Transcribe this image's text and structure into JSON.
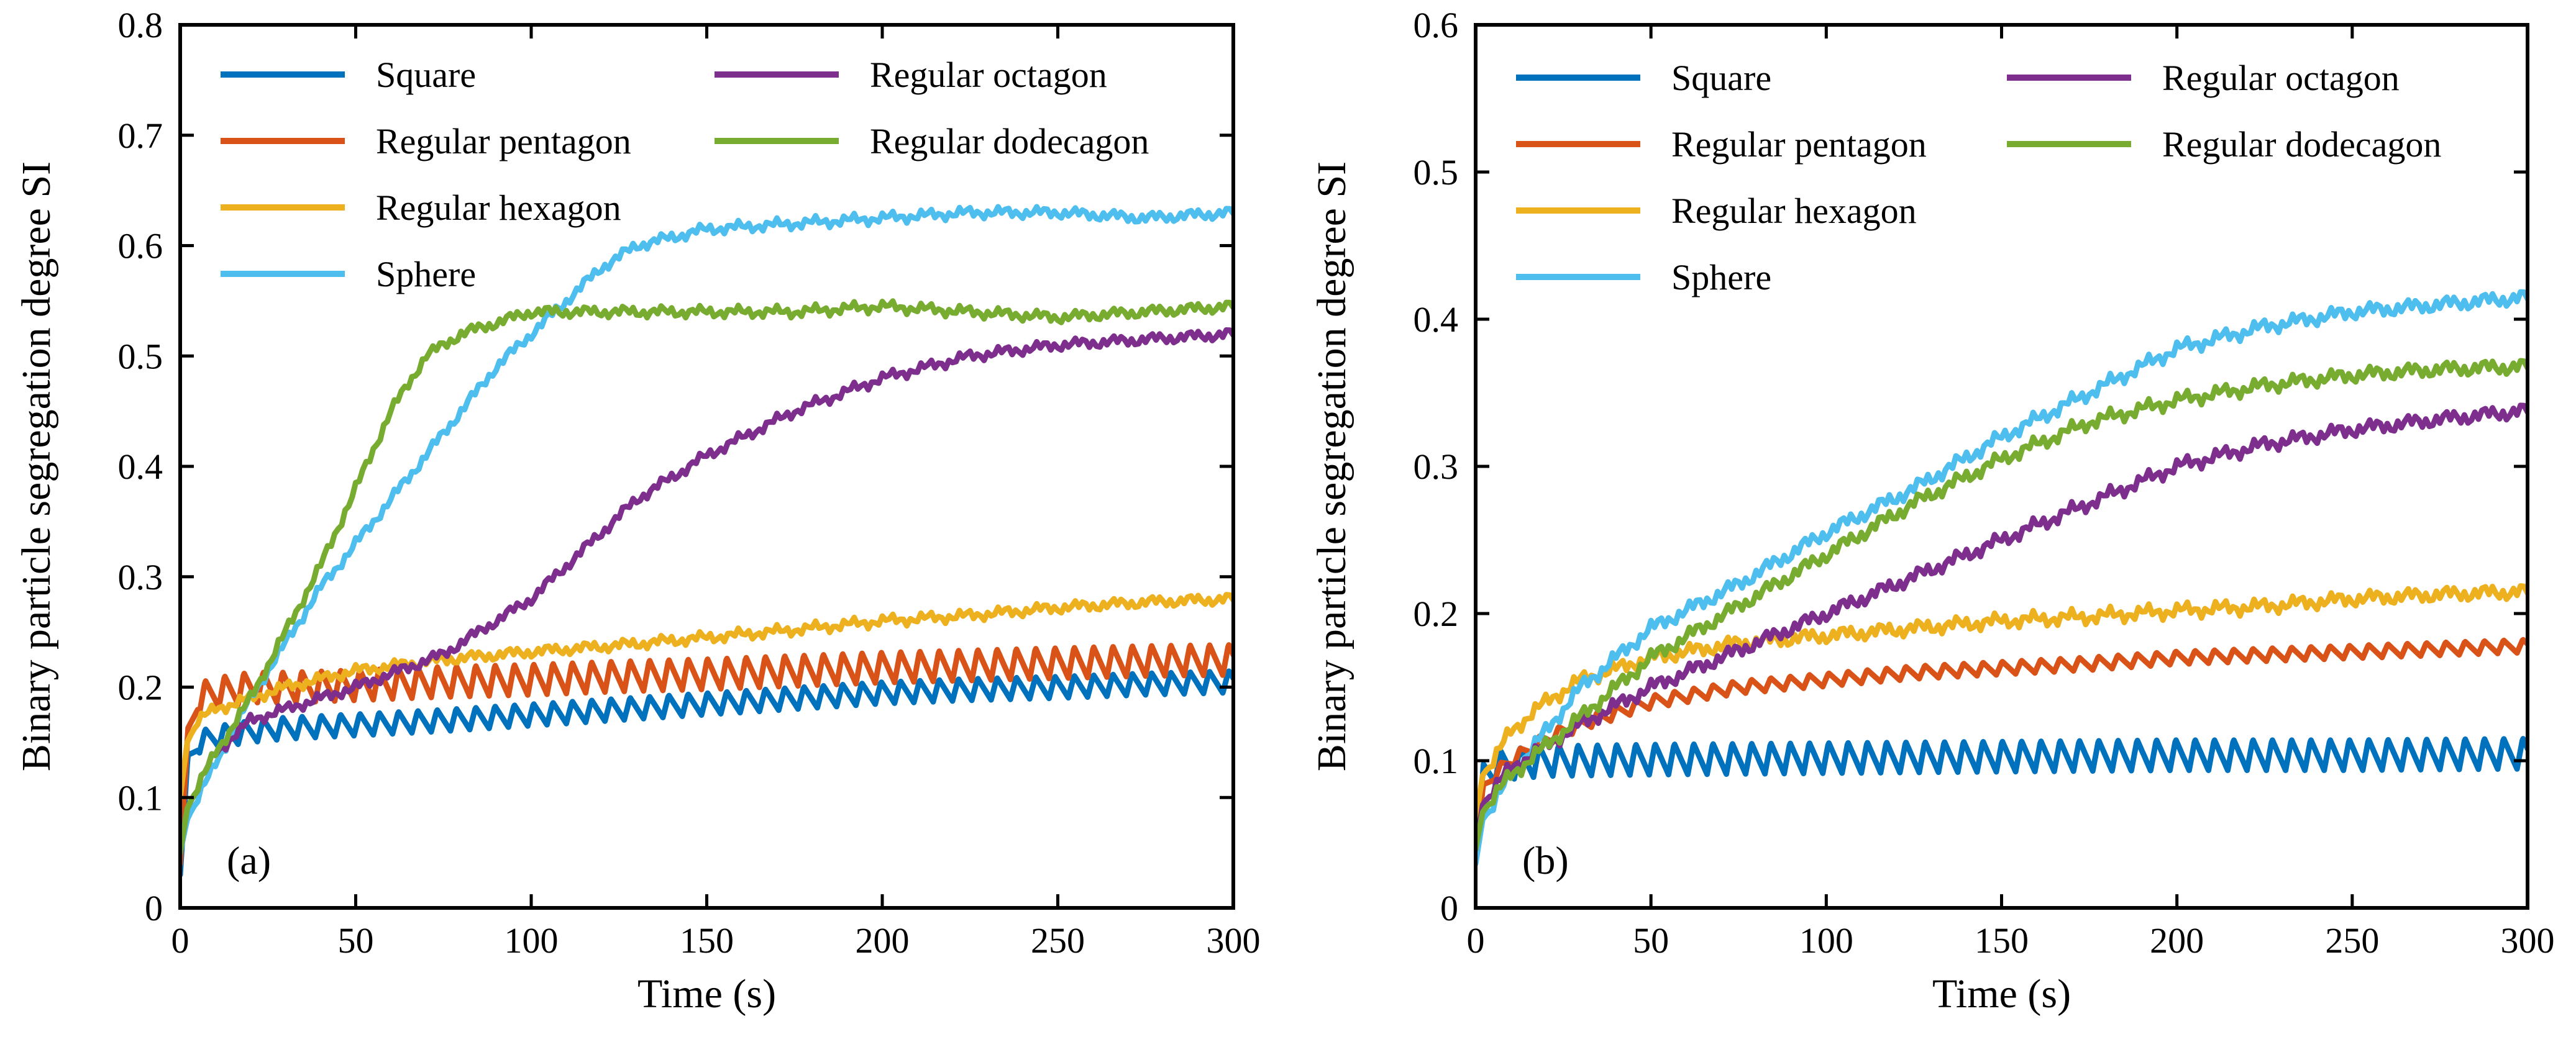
{
  "colors": {
    "Square": "#0072BD",
    "Regular pentagon": "#D95319",
    "Regular hexagon": "#EDB120",
    "Sphere": "#4DBEEE",
    "Regular octagon": "#7E2F8E",
    "Regular dodecagon": "#77AC30"
  },
  "chart_data": [
    {
      "type": "line",
      "panel_label": "(a)",
      "xlabel": "Time (s)",
      "ylabel": "Binary particle segregation degree SI",
      "xlim": [
        0,
        300
      ],
      "ylim": [
        0,
        0.8
      ],
      "xticks": [
        0,
        50,
        100,
        150,
        200,
        250,
        300
      ],
      "yticks": [
        0,
        0.1,
        0.2,
        0.3,
        0.4,
        0.5,
        0.6,
        0.7,
        0.8
      ],
      "x_tick_labels": [
        "0",
        "50",
        "100",
        "150",
        "200",
        "250",
        "300"
      ],
      "y_tick_labels": [
        "0",
        "0.1",
        "0.2",
        "0.3",
        "0.4",
        "0.5",
        "0.6",
        "0.7",
        "0.8"
      ],
      "legend": {
        "placement": "top-left, two columns",
        "columns": [
          [
            "Square",
            "Regular pentagon",
            "Regular hexagon",
            "Sphere"
          ],
          [
            "Regular octagon",
            "Regular dodecagon"
          ]
        ]
      },
      "series": [
        {
          "name": "Square",
          "oscillation": {
            "amplitude": 0.02,
            "period_s": 5.5
          },
          "x": [
            0,
            2,
            5,
            10,
            20,
            30,
            50,
            75,
            100,
            125,
            150,
            175,
            200,
            225,
            250,
            275,
            300
          ],
          "y": [
            0.03,
            0.13,
            0.15,
            0.155,
            0.16,
            0.163,
            0.166,
            0.17,
            0.175,
            0.18,
            0.185,
            0.19,
            0.195,
            0.198,
            0.2,
            0.203,
            0.205
          ]
        },
        {
          "name": "Regular pentagon",
          "oscillation": {
            "amplitude": 0.028,
            "period_s": 5.5
          },
          "x": [
            0,
            2,
            5,
            10,
            20,
            30,
            50,
            75,
            100,
            125,
            150,
            175,
            200,
            225,
            250,
            275,
            300
          ],
          "y": [
            0.04,
            0.15,
            0.19,
            0.195,
            0.2,
            0.2,
            0.202,
            0.205,
            0.207,
            0.21,
            0.212,
            0.215,
            0.218,
            0.22,
            0.222,
            0.224,
            0.225
          ]
        },
        {
          "name": "Regular hexagon",
          "x": [
            0,
            2,
            5,
            10,
            20,
            30,
            50,
            75,
            100,
            125,
            150,
            175,
            200,
            225,
            250,
            275,
            300
          ],
          "y": [
            0.1,
            0.15,
            0.17,
            0.18,
            0.19,
            0.2,
            0.215,
            0.225,
            0.232,
            0.238,
            0.245,
            0.252,
            0.26,
            0.265,
            0.272,
            0.277,
            0.28
          ]
        },
        {
          "name": "Sphere",
          "x": [
            0,
            2,
            5,
            10,
            20,
            30,
            40,
            50,
            60,
            70,
            80,
            90,
            100,
            110,
            120,
            130,
            150,
            175,
            200,
            225,
            250,
            275,
            300
          ],
          "y": [
            0.05,
            0.08,
            0.1,
            0.13,
            0.19,
            0.24,
            0.29,
            0.33,
            0.37,
            0.41,
            0.45,
            0.49,
            0.52,
            0.55,
            0.58,
            0.6,
            0.615,
            0.62,
            0.625,
            0.63,
            0.63,
            0.625,
            0.63
          ]
        },
        {
          "name": "Regular octagon",
          "x": [
            0,
            2,
            5,
            10,
            20,
            30,
            50,
            75,
            100,
            110,
            120,
            130,
            150,
            175,
            200,
            225,
            250,
            275,
            300
          ],
          "y": [
            0.05,
            0.09,
            0.11,
            0.14,
            0.17,
            0.18,
            0.2,
            0.23,
            0.28,
            0.31,
            0.34,
            0.37,
            0.41,
            0.45,
            0.48,
            0.5,
            0.51,
            0.515,
            0.52
          ]
        },
        {
          "name": "Regular dodecagon",
          "x": [
            0,
            2,
            5,
            10,
            20,
            30,
            40,
            50,
            60,
            70,
            80,
            90,
            100,
            125,
            150,
            175,
            200,
            225,
            250,
            275,
            300
          ],
          "y": [
            0.05,
            0.09,
            0.11,
            0.14,
            0.19,
            0.25,
            0.31,
            0.38,
            0.45,
            0.5,
            0.52,
            0.53,
            0.54,
            0.54,
            0.54,
            0.54,
            0.545,
            0.54,
            0.535,
            0.54,
            0.545
          ]
        }
      ]
    },
    {
      "type": "line",
      "panel_label": "(b)",
      "xlabel": "Time (s)",
      "ylabel": "Binary particle segregation degree SI",
      "xlim": [
        0,
        300
      ],
      "ylim": [
        0,
        0.6
      ],
      "xticks": [
        0,
        50,
        100,
        150,
        200,
        250,
        300
      ],
      "yticks": [
        0,
        0.1,
        0.2,
        0.3,
        0.4,
        0.5,
        0.6
      ],
      "x_tick_labels": [
        "0",
        "50",
        "100",
        "150",
        "200",
        "250",
        "300"
      ],
      "y_tick_labels": [
        "0",
        "0.1",
        "0.2",
        "0.3",
        "0.4",
        "0.5",
        "0.6"
      ],
      "legend": {
        "placement": "top-left, two columns",
        "columns": [
          [
            "Square",
            "Regular pentagon",
            "Regular hexagon",
            "Sphere"
          ],
          [
            "Regular octagon",
            "Regular dodecagon"
          ]
        ]
      },
      "series": [
        {
          "name": "Square",
          "oscillation": {
            "amplitude": 0.021,
            "period_s": 5.5
          },
          "x": [
            0,
            2,
            5,
            10,
            20,
            50,
            100,
            150,
            200,
            250,
            300
          ],
          "y": [
            0.05,
            0.09,
            0.095,
            0.098,
            0.1,
            0.101,
            0.102,
            0.103,
            0.104,
            0.104,
            0.105
          ]
        },
        {
          "name": "Regular pentagon",
          "oscillation": {
            "amplitude": 0.009,
            "period_s": 5.5
          },
          "x": [
            0,
            2,
            5,
            10,
            20,
            30,
            50,
            75,
            100,
            125,
            150,
            175,
            200,
            225,
            250,
            275,
            300
          ],
          "y": [
            0.04,
            0.08,
            0.09,
            0.1,
            0.115,
            0.125,
            0.14,
            0.15,
            0.155,
            0.16,
            0.163,
            0.166,
            0.17,
            0.172,
            0.174,
            0.176,
            0.178
          ]
        },
        {
          "name": "Regular hexagon",
          "x": [
            0,
            2,
            5,
            10,
            20,
            30,
            50,
            75,
            100,
            125,
            150,
            175,
            200,
            225,
            250,
            275,
            300
          ],
          "y": [
            0.06,
            0.09,
            0.1,
            0.12,
            0.14,
            0.155,
            0.17,
            0.18,
            0.185,
            0.19,
            0.195,
            0.198,
            0.202,
            0.205,
            0.21,
            0.213,
            0.215
          ]
        },
        {
          "name": "Sphere",
          "x": [
            0,
            2,
            5,
            10,
            20,
            30,
            50,
            75,
            100,
            125,
            150,
            175,
            200,
            225,
            250,
            275,
            300
          ],
          "y": [
            0.03,
            0.06,
            0.07,
            0.09,
            0.12,
            0.15,
            0.19,
            0.22,
            0.255,
            0.285,
            0.32,
            0.35,
            0.38,
            0.395,
            0.405,
            0.41,
            0.415
          ]
        },
        {
          "name": "Regular octagon",
          "x": [
            0,
            2,
            5,
            10,
            20,
            30,
            50,
            75,
            100,
            125,
            150,
            175,
            200,
            225,
            250,
            275,
            300
          ],
          "y": [
            0.04,
            0.07,
            0.08,
            0.095,
            0.11,
            0.125,
            0.15,
            0.175,
            0.2,
            0.225,
            0.25,
            0.275,
            0.3,
            0.315,
            0.325,
            0.332,
            0.338
          ]
        },
        {
          "name": "Regular dodecagon",
          "x": [
            0,
            2,
            5,
            10,
            20,
            30,
            50,
            75,
            100,
            125,
            150,
            175,
            200,
            225,
            250,
            275,
            300
          ],
          "y": [
            0.04,
            0.065,
            0.075,
            0.09,
            0.11,
            0.13,
            0.17,
            0.205,
            0.24,
            0.275,
            0.305,
            0.33,
            0.345,
            0.355,
            0.362,
            0.366,
            0.368
          ]
        }
      ]
    }
  ]
}
